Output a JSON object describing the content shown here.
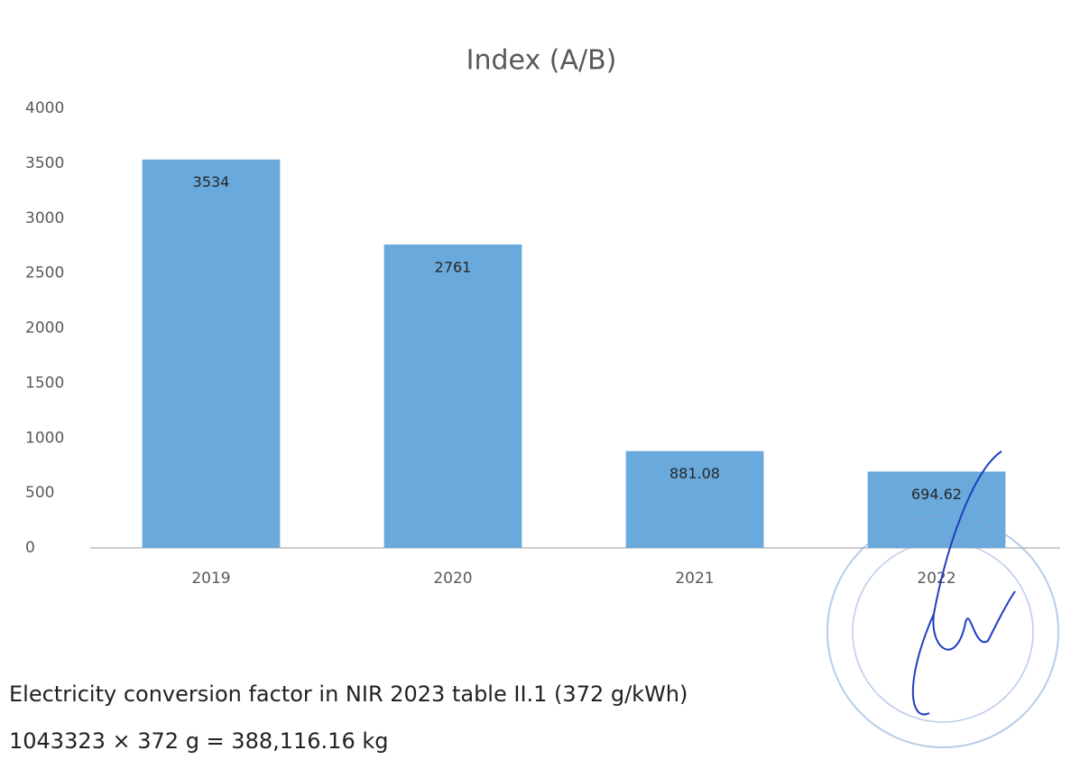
{
  "chart_data": {
    "type": "bar",
    "title": "Index (A/B)",
    "categories": [
      "2019",
      "2020",
      "2021",
      "2022"
    ],
    "values": [
      3534,
      2761,
      881.08,
      694.62
    ],
    "color": "#6aa9dc",
    "ylim": [
      0,
      4000
    ],
    "yticks": [
      0,
      500,
      1000,
      1500,
      2000,
      2500,
      3000,
      3500,
      4000
    ],
    "grid": false
  },
  "notes": [
    "Electricity conversion factor in NIR 2023 table II.1 (372 g/kWh)",
    "1043323 × 372 g = 388,116.16 kg"
  ]
}
